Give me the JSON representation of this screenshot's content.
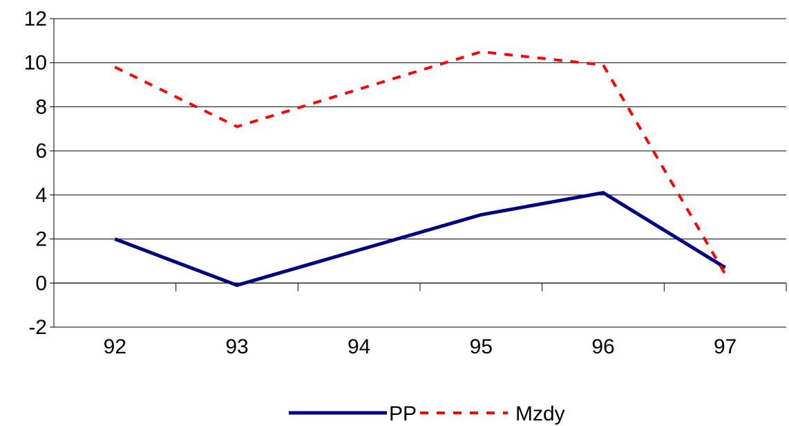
{
  "chart_data": {
    "type": "line",
    "title": "",
    "xlabel": "",
    "ylabel": "",
    "categories": [
      "92",
      "93",
      "94",
      "95",
      "96",
      "97"
    ],
    "ylim": [
      -2,
      12
    ],
    "yticks": [
      "-2",
      "0",
      "2",
      "4",
      "6",
      "8",
      "10",
      "12"
    ],
    "grid": "horizontal",
    "legend_position": "bottom",
    "series": [
      {
        "name": "PP",
        "values": [
          2.0,
          -0.1,
          1.5,
          3.1,
          4.1,
          0.7
        ],
        "color": "#000080",
        "style": "solid"
      },
      {
        "name": "Mzdy",
        "values": [
          9.8,
          7.1,
          8.8,
          10.5,
          9.9,
          0.4
        ],
        "color": "#ff0000",
        "style": "dashed"
      }
    ]
  }
}
